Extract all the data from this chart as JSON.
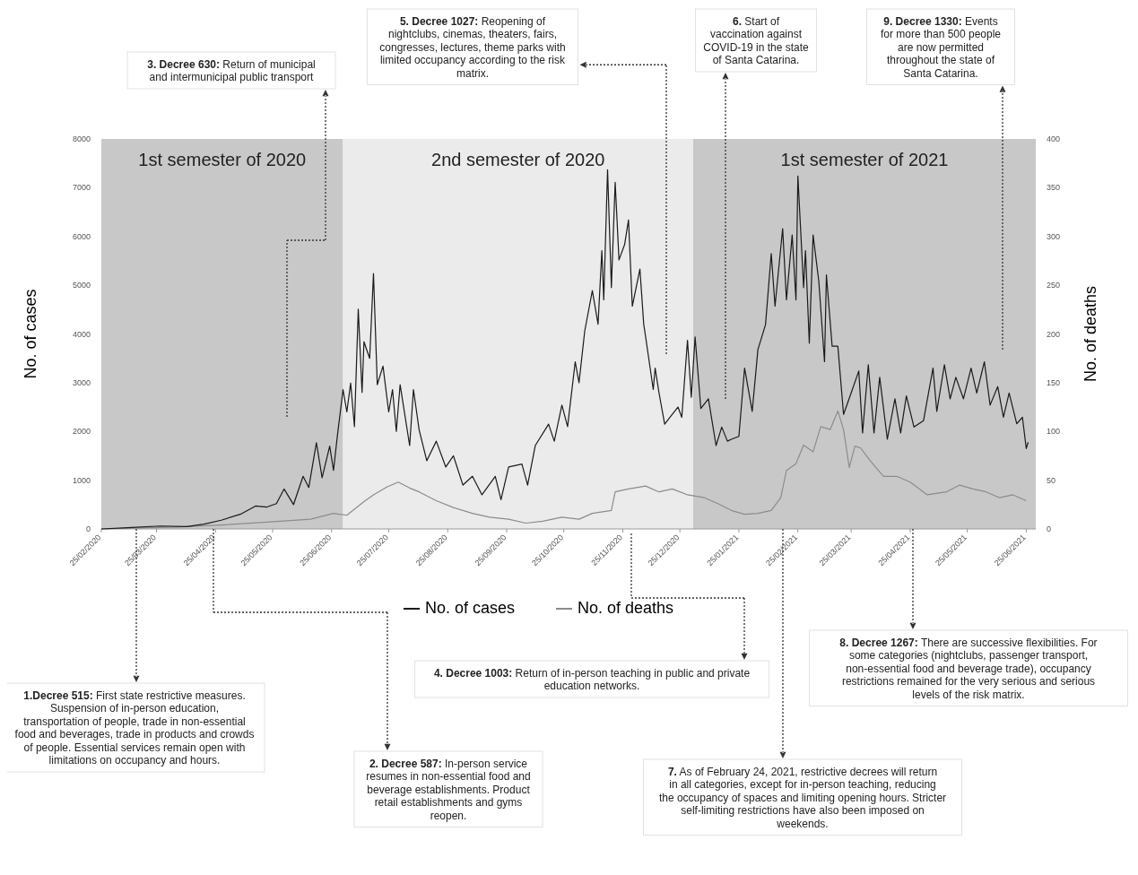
{
  "chart_data": {
    "type": "line",
    "ylabel": "No. of cases",
    "y2label": "No. of deaths",
    "legend": "bottom",
    "xlim": [
      "2020-02-25",
      "2021-06-30"
    ],
    "xticks": [
      {
        "value": "2020-02-25",
        "label": "25/02/2020"
      },
      {
        "value": "2020-03-25",
        "label": "25/03/2020"
      },
      {
        "value": "2020-04-25",
        "label": "25/04/2020"
      },
      {
        "value": "2020-05-25",
        "label": "25/05/2020"
      },
      {
        "value": "2020-06-25",
        "label": "25/06/2020"
      },
      {
        "value": "2020-07-25",
        "label": "25/07/2020"
      },
      {
        "value": "2020-08-25",
        "label": "25/08/2020"
      },
      {
        "value": "2020-09-25",
        "label": "25/09/2020"
      },
      {
        "value": "2020-10-25",
        "label": "25/10/2020"
      },
      {
        "value": "2020-11-25",
        "label": "25/11/2020"
      },
      {
        "value": "2020-12-25",
        "label": "25/12/2020"
      },
      {
        "value": "2021-01-25",
        "label": "25/01/2021"
      },
      {
        "value": "2021-02-25",
        "label": "25/02/2021"
      },
      {
        "value": "2021-03-25",
        "label": "25/03/2021"
      },
      {
        "value": "2021-04-25",
        "label": "25/04/2021"
      },
      {
        "value": "2021-05-25",
        "label": "25/05/2021"
      },
      {
        "value": "2021-06-25",
        "label": "25/06/2021"
      }
    ],
    "ylim": [
      0,
      8000
    ],
    "yticks": [
      0,
      1000,
      2000,
      3000,
      4000,
      5000,
      6000,
      7000,
      8000
    ],
    "y2lim": [
      0,
      400
    ],
    "y2ticks": [
      0,
      50,
      100,
      150,
      200,
      250,
      300,
      350,
      400
    ],
    "bands": [
      {
        "axis": "x",
        "from": "2020-02-25",
        "to": "2020-07-01",
        "label": "1st semester of 2020",
        "color": "#c8c8c8"
      },
      {
        "axis": "x",
        "from": "2020-07-01",
        "to": "2021-01-01",
        "label": "2nd semester of 2020",
        "color": "#ebebeb"
      },
      {
        "axis": "x",
        "from": "2021-01-01",
        "to": "2021-06-30",
        "label": "1st semester of 2021",
        "color": "#c8c8c8"
      }
    ],
    "series": [
      {
        "name": "No. of cases",
        "color": "#1a1a1a",
        "x": [
          "2020-02-25",
          "2020-03-12",
          "2020-03-27",
          "2020-04-10",
          "2020-04-19",
          "2020-04-28",
          "2020-05-08",
          "2020-05-16",
          "2020-05-22",
          "2020-05-27",
          "2020-05-31",
          "2020-06-05",
          "2020-06-10",
          "2020-06-13",
          "2020-06-17",
          "2020-06-20",
          "2020-06-24",
          "2020-06-26",
          "2020-06-28",
          "2020-07-01",
          "2020-07-03",
          "2020-07-05",
          "2020-07-07",
          "2020-07-09",
          "2020-07-11",
          "2020-07-12",
          "2020-07-15",
          "2020-07-17",
          "2020-07-19",
          "2020-07-22",
          "2020-07-25",
          "2020-07-27",
          "2020-07-29",
          "2020-07-31",
          "2020-08-05",
          "2020-08-07",
          "2020-08-10",
          "2020-08-14",
          "2020-08-19",
          "2020-08-24",
          "2020-08-28",
          "2020-09-02",
          "2020-09-07",
          "2020-09-12",
          "2020-09-19",
          "2020-09-22",
          "2020-09-26",
          "2020-10-03",
          "2020-10-06",
          "2020-10-10",
          "2020-10-17",
          "2020-10-20",
          "2020-10-24",
          "2020-10-27",
          "2020-10-31",
          "2020-11-02",
          "2020-11-05",
          "2020-11-09",
          "2020-11-12",
          "2020-11-14",
          "2020-11-15",
          "2020-11-17",
          "2020-11-19",
          "2020-11-21",
          "2020-11-23",
          "2020-11-26",
          "2020-11-28",
          "2020-11-30",
          "2020-12-04",
          "2020-12-06",
          "2020-12-07",
          "2020-12-11",
          "2020-12-12",
          "2020-12-14",
          "2020-12-17",
          "2020-12-21",
          "2020-12-24",
          "2020-12-26",
          "2020-12-29",
          "2020-12-31",
          "2021-01-02",
          "2021-01-05",
          "2021-01-09",
          "2021-01-13",
          "2021-01-16",
          "2021-01-19",
          "2021-01-21",
          "2021-01-25",
          "2021-01-28",
          "2021-02-01",
          "2021-02-04",
          "2021-02-08",
          "2021-02-11",
          "2021-02-13",
          "2021-02-17",
          "2021-02-19",
          "2021-02-22",
          "2021-02-24",
          "2021-02-25",
          "2021-02-28",
          "2021-03-01",
          "2021-03-03",
          "2021-03-05",
          "2021-03-08",
          "2021-03-11",
          "2021-03-12",
          "2021-03-15",
          "2021-03-18",
          "2021-03-21",
          "2021-03-25",
          "2021-03-29",
          "2021-03-31",
          "2021-04-03",
          "2021-04-06",
          "2021-04-09",
          "2021-04-13",
          "2021-04-17",
          "2021-04-20",
          "2021-04-23",
          "2021-04-27",
          "2021-05-02",
          "2021-05-07",
          "2021-05-09",
          "2021-05-13",
          "2021-05-16",
          "2021-05-19",
          "2021-05-23",
          "2021-05-27",
          "2021-05-30",
          "2021-06-03",
          "2021-06-06",
          "2021-06-10",
          "2021-06-13",
          "2021-06-16",
          "2021-06-20",
          "2021-06-23",
          "2021-06-25",
          "2021-06-26"
        ],
        "values": [
          0,
          30,
          60,
          50,
          100,
          180,
          300,
          470,
          450,
          520,
          820,
          500,
          1080,
          850,
          1770,
          1050,
          1700,
          1200,
          1900,
          2860,
          2400,
          2990,
          2100,
          4510,
          2800,
          3840,
          3500,
          5240,
          2960,
          3340,
          2400,
          2860,
          2000,
          2960,
          1710,
          2860,
          2030,
          1400,
          1800,
          1270,
          1500,
          900,
          1080,
          700,
          1080,
          600,
          1270,
          1330,
          900,
          1710,
          2150,
          1800,
          2540,
          2100,
          3430,
          3000,
          4060,
          4890,
          4200,
          5710,
          4700,
          7370,
          4950,
          7110,
          5520,
          5840,
          6340,
          4570,
          5330,
          4200,
          3940,
          2860,
          3300,
          2800,
          2150,
          2350,
          2500,
          2290,
          3870,
          2700,
          3940,
          2470,
          2670,
          1710,
          2090,
          1800,
          1840,
          1900,
          3300,
          2410,
          3680,
          4190,
          5650,
          4570,
          6160,
          4700,
          6030,
          4700,
          7240,
          4950,
          5710,
          3810,
          6030,
          5080,
          3430,
          5210,
          3750,
          3750,
          2350,
          2790,
          3240,
          1970,
          3370,
          1970,
          3110,
          1840,
          2670,
          1970,
          2730,
          2090,
          2220,
          3300,
          2410,
          3370,
          2670,
          3110,
          2670,
          3300,
          2790,
          3430,
          2540,
          2920,
          2290,
          2790,
          2160,
          2290,
          1650,
          1780
        ]
      },
      {
        "name": "No. of deaths",
        "color": "#8c8c8c",
        "axis": "y2",
        "x": [
          "2020-02-25",
          "2020-04-05",
          "2020-04-28",
          "2020-05-22",
          "2020-06-14",
          "2020-06-26",
          "2020-07-03",
          "2020-07-12",
          "2020-07-17",
          "2020-07-24",
          "2020-07-30",
          "2020-08-05",
          "2020-08-10",
          "2020-08-19",
          "2020-08-28",
          "2020-09-07",
          "2020-09-16",
          "2020-09-26",
          "2020-10-05",
          "2020-10-14",
          "2020-10-24",
          "2020-11-02",
          "2020-11-09",
          "2020-11-19",
          "2020-11-21",
          "2020-11-28",
          "2020-12-07",
          "2020-12-14",
          "2020-12-21",
          "2020-12-29",
          "2021-01-07",
          "2021-01-14",
          "2021-01-21",
          "2021-01-28",
          "2021-02-04",
          "2021-02-11",
          "2021-02-16",
          "2021-02-19",
          "2021-02-24",
          "2021-02-28",
          "2021-03-05",
          "2021-03-09",
          "2021-03-14",
          "2021-03-18",
          "2021-03-21",
          "2021-03-24",
          "2021-03-27",
          "2021-03-30",
          "2021-04-04",
          "2021-04-11",
          "2021-04-18",
          "2021-04-25",
          "2021-05-04",
          "2021-05-14",
          "2021-05-21",
          "2021-05-28",
          "2021-06-04",
          "2021-06-11",
          "2021-06-18",
          "2021-06-25"
        ],
        "values": [
          0,
          2,
          4,
          7,
          10,
          16,
          14,
          28,
          35,
          43,
          48,
          42,
          38,
          29,
          22,
          16,
          12,
          10,
          6,
          8,
          12,
          10,
          16,
          19,
          38,
          41,
          44,
          38,
          41,
          35,
          32,
          26,
          19,
          15,
          16,
          19,
          32,
          60,
          67,
          86,
          79,
          105,
          102,
          121,
          102,
          63,
          85,
          83,
          70,
          54,
          54,
          48,
          35,
          38,
          45,
          41,
          38,
          32,
          35,
          29
        ]
      }
    ],
    "annotations": [
      "1.Decree 515: First state restrictive measures. Suspension of in-person education, transportation of people, trade in non-essential food and beverages, trade in products and crowds of people. Essential services remain open with limitations on occupancy and hours.",
      "2. Decree 587: In-person service resumes in non-essential food and beverage establishments. Product retail establishments and gyms reopen.",
      "3. Decree 630: Return of municipal and intermunicipal public transport",
      "4. Decree 1003: Return of in-person teaching in public and private education networks.",
      "5. Decree 1027: Reopening of nightclubs, cinemas, theaters, fairs, congresses, lectures, theme parks with limited occupancy according to the risk matrix.",
      "6. Start of vaccination against COVID-19 in the state of Santa Catarina.",
      "7. As of February 24, 2021, restrictive decrees will return in all categories, except for in-person teaching, reducing the occupancy of spaces and limiting opening hours. Stricter self-limiting restrictions have also been imposed on weekends.",
      "8. Decree 1267: There are successive flexibilities. For some categories (nightclubs, passenger transport, non-essential food and beverage trade), occupancy restrictions remained for the very serious and serious levels of the risk matrix.",
      "9. Decree 1330: Events for more than 500 people are now permitted throughout the state of Santa Catarina."
    ]
  }
}
